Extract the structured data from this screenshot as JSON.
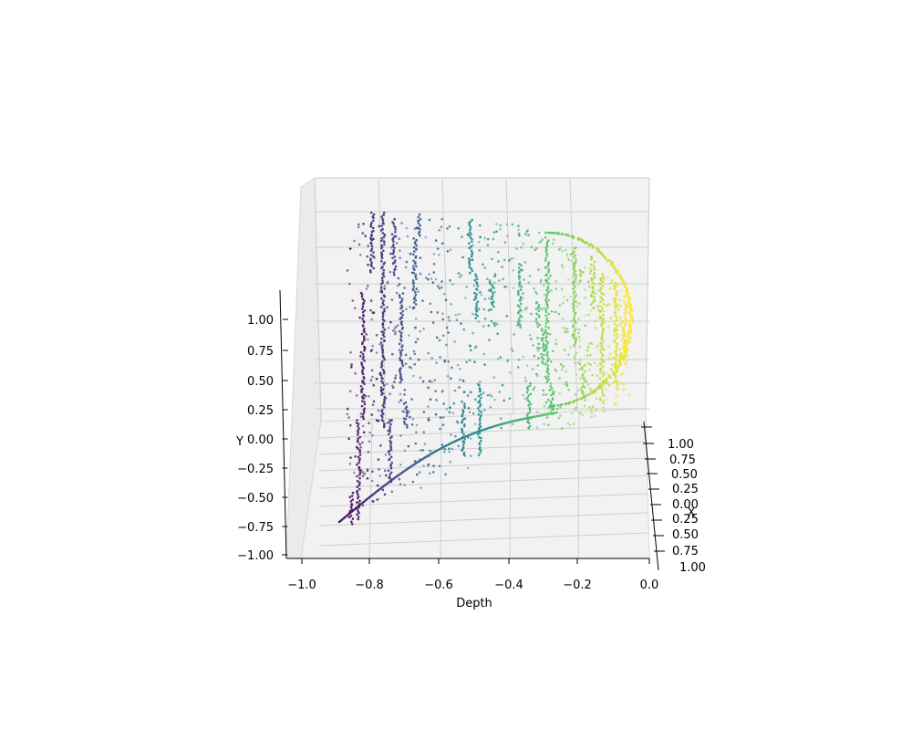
{
  "chart_data": {
    "type": "scatter",
    "projection": "3d",
    "colormap": "viridis",
    "colormap_stops": [
      "#440154",
      "#3b528b",
      "#21918c",
      "#5ec962",
      "#fde725"
    ],
    "pane_color": "#f2f2f2",
    "grid": true,
    "xlabel": "Depth",
    "ylabel": "Y",
    "zlabel": "X",
    "depth_ticks": [
      "−1.0",
      "−0.8",
      "−0.6",
      "−0.4",
      "−0.2",
      "0.0"
    ],
    "y_ticks": [
      "−1.00",
      "−0.75",
      "−0.50",
      "−0.25",
      "0.00",
      "0.25",
      "0.50",
      "0.75",
      "1.00"
    ],
    "x_ticks": [
      "1.00",
      "0.75",
      "0.50",
      "0.25",
      "0.00",
      "0.25",
      "0.50",
      "0.75",
      "1.00"
    ],
    "depth_range": [
      -1.0,
      0.0
    ],
    "y_range": [
      -1.0,
      1.0
    ],
    "x_range": [
      -1.0,
      1.0
    ],
    "point_cloud_summary": {
      "depth_min": -0.9,
      "depth_max": 0.0,
      "y_min": -0.85,
      "y_max": 0.95
    }
  }
}
